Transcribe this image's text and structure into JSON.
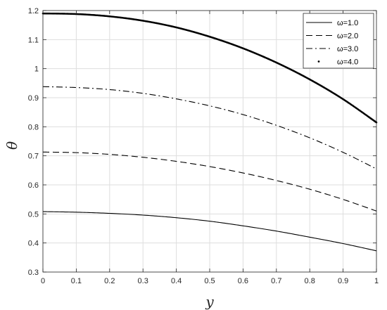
{
  "chart_data": {
    "type": "line",
    "title": "",
    "xlabel": "y",
    "ylabel": "θ",
    "xlim": [
      0,
      1
    ],
    "ylim": [
      0.3,
      1.2
    ],
    "xticks": [
      0,
      0.1,
      0.2,
      0.3,
      0.4,
      0.5,
      0.6,
      0.7,
      0.8,
      0.9,
      1
    ],
    "xtick_labels": [
      "0",
      "0.1",
      "0.2",
      "0.3",
      "0.4",
      "0.5",
      "0.6",
      "0.7",
      "0.8",
      "0.9",
      "1"
    ],
    "yticks": [
      0.3,
      0.4,
      0.5,
      0.6,
      0.7,
      0.8,
      0.9,
      1,
      1.1,
      1.2
    ],
    "ytick_labels": [
      "0.3",
      "0.4",
      "0.5",
      "0.6",
      "0.7",
      "0.8",
      "0.9",
      "1",
      "1.1",
      "1.2"
    ],
    "grid": true,
    "legend_position": "top-right",
    "x": [
      0,
      0.1,
      0.2,
      0.3,
      0.4,
      0.5,
      0.6,
      0.7,
      0.8,
      0.9,
      1
    ],
    "series": [
      {
        "name": "ω=1.0",
        "style": "solid",
        "values": [
          0.508,
          0.506,
          0.502,
          0.496,
          0.487,
          0.475,
          0.459,
          0.441,
          0.42,
          0.398,
          0.373
        ]
      },
      {
        "name": "ω=2.0",
        "style": "dashed",
        "values": [
          0.713,
          0.711,
          0.705,
          0.695,
          0.681,
          0.663,
          0.641,
          0.615,
          0.585,
          0.55,
          0.51
        ]
      },
      {
        "name": "ω=3.0",
        "style": "dashdot",
        "values": [
          0.938,
          0.935,
          0.928,
          0.915,
          0.896,
          0.872,
          0.842,
          0.805,
          0.762,
          0.712,
          0.655
        ]
      },
      {
        "name": "ω=4.0",
        "style": "dotted",
        "values": [
          1.19,
          1.188,
          1.18,
          1.165,
          1.142,
          1.11,
          1.07,
          1.021,
          0.963,
          0.895,
          0.815
        ]
      }
    ]
  }
}
